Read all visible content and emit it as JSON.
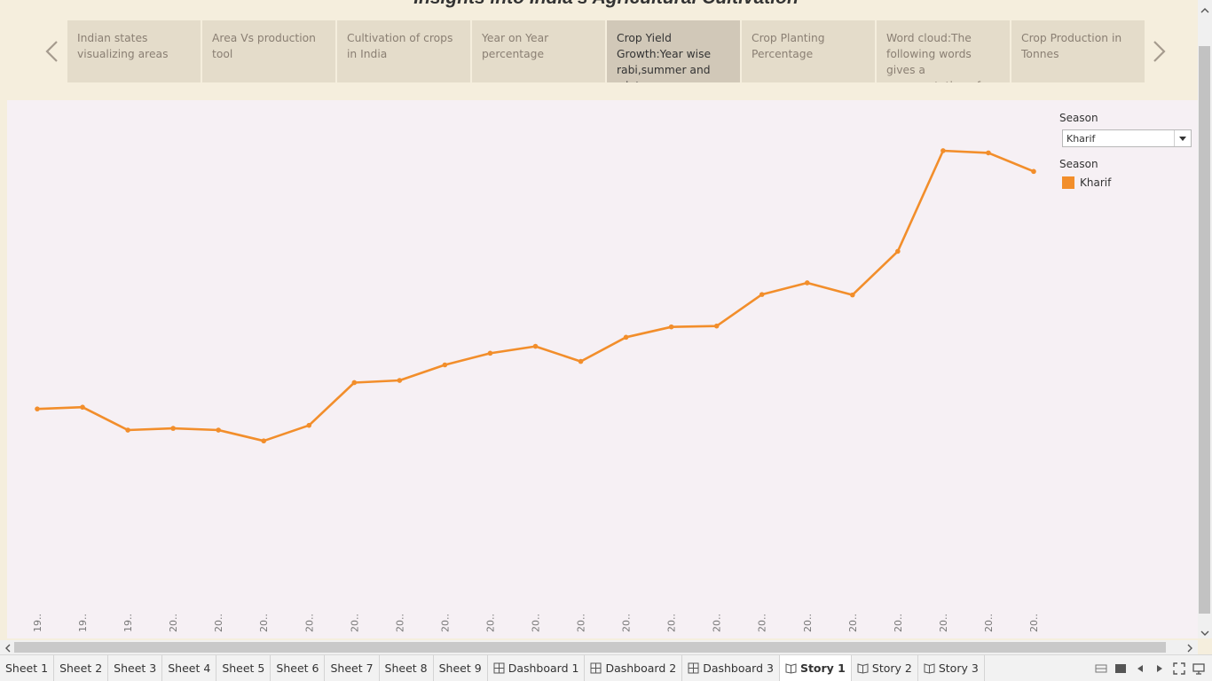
{
  "story": {
    "title": "Insights into India's Agricultural Cultivation",
    "tabs": [
      {
        "label": "Indian states visualizing areas",
        "active": false
      },
      {
        "label": "Area Vs production tool",
        "active": false
      },
      {
        "label": "Cultivation of crops in India",
        "active": false
      },
      {
        "label": "Year on Year percentage",
        "active": false
      },
      {
        "label": "Crop Yield Growth:Year wise rabi,summer and winter",
        "active": true
      },
      {
        "label": "Crop Planting Percentage",
        "active": false
      },
      {
        "label": "Word cloud:The following words gives a representation of",
        "active": false
      },
      {
        "label": "Crop Production in Tonnes",
        "active": false
      }
    ]
  },
  "filter": {
    "label": "Season",
    "value": "Kharif"
  },
  "legend": {
    "title": "Season",
    "items": [
      {
        "label": "Kharif",
        "color": "#f28e2b"
      }
    ]
  },
  "chart_data": {
    "type": "line",
    "x_tick_labels": [
      "19..",
      "19..",
      "19..",
      "20..",
      "20..",
      "20..",
      "20..",
      "20..",
      "20..",
      "20..",
      "20..",
      "20..",
      "20..",
      "20..",
      "20..",
      "20..",
      "20..",
      "20..",
      "20..",
      "20..",
      "20..",
      "20..",
      "20.."
    ],
    "series": [
      {
        "name": "Kharif",
        "color": "#f28e2b",
        "values": [
          43.5,
          43.9,
          38.6,
          39.0,
          38.6,
          36.1,
          39.7,
          49.6,
          50.1,
          53.7,
          56.4,
          58.0,
          54.5,
          60.1,
          62.5,
          62.7,
          70.0,
          72.7,
          69.9,
          80.0,
          103.3,
          102.8,
          98.5
        ]
      }
    ],
    "ylim": [
      0,
      115
    ],
    "grid": false
  },
  "sheets": [
    {
      "label": "Sheet 1",
      "type": "sheet"
    },
    {
      "label": "Sheet 2",
      "type": "sheet"
    },
    {
      "label": "Sheet 3",
      "type": "sheet"
    },
    {
      "label": "Sheet 4",
      "type": "sheet"
    },
    {
      "label": "Sheet 5",
      "type": "sheet"
    },
    {
      "label": "Sheet 6",
      "type": "sheet"
    },
    {
      "label": "Sheet 7",
      "type": "sheet"
    },
    {
      "label": "Sheet 8",
      "type": "sheet"
    },
    {
      "label": "Sheet 9",
      "type": "sheet"
    },
    {
      "label": "Dashboard 1",
      "type": "dashboard"
    },
    {
      "label": "Dashboard 2",
      "type": "dashboard"
    },
    {
      "label": "Dashboard 3",
      "type": "dashboard"
    },
    {
      "label": "Story 1",
      "type": "story",
      "active": true
    },
    {
      "label": "Story 2",
      "type": "story"
    },
    {
      "label": "Story 3",
      "type": "story"
    }
  ]
}
